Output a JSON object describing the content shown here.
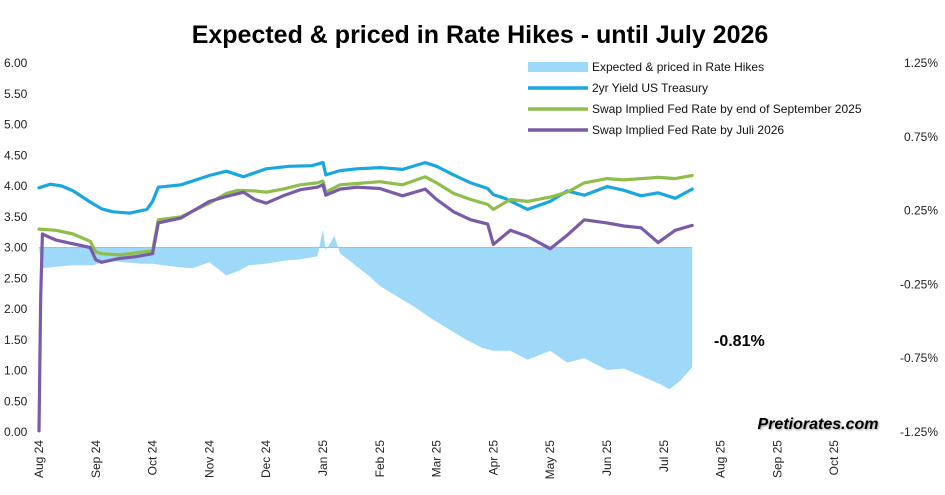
{
  "chart_data": {
    "type": "line",
    "title": "Expected & priced in Rate Hikes - until July 2026",
    "xlabel": "",
    "ylabel": "",
    "x_ticks": [
      "Aug 24",
      "Sep 24",
      "Oct 24",
      "Nov 24",
      "Dec 24",
      "Jan 25",
      "Feb 25",
      "Mar 25",
      "Apr 25",
      "May 25",
      "Jun 25",
      "Jul 25",
      "Aug 25",
      "Sep 25",
      "Oct 25"
    ],
    "y_left": {
      "ticks": [
        "6.00",
        "5.50",
        "5.00",
        "4.50",
        "4.00",
        "3.50",
        "3.00",
        "2.50",
        "2.00",
        "1.50",
        "1.00",
        "0.50",
        "0.00"
      ],
      "ylim": [
        0,
        6
      ]
    },
    "y_right": {
      "ticks": [
        "1.25%",
        "0.75%",
        "0.25%",
        "-0.25%",
        "-0.75%",
        "-1.25%"
      ],
      "ylim": [
        -1.25,
        1.25
      ]
    },
    "legend_position": "top-right",
    "grid": false,
    "series": [
      {
        "name": "Expected & priced in Rate Hikes",
        "kind": "area",
        "axis": "right",
        "color": "#9fd9fa",
        "x": [
          0.0,
          0.05,
          0.3,
          0.6,
          0.95,
          1.2,
          1.5,
          1.8,
          2.0,
          2.2,
          2.4,
          2.7,
          3.0,
          3.3,
          3.5,
          3.7,
          4.0,
          4.3,
          4.6,
          4.9,
          5.0,
          5.05,
          5.2,
          5.3,
          5.5,
          5.8,
          6.0,
          6.3,
          6.6,
          6.9,
          7.2,
          7.5,
          7.8,
          8.0,
          8.3,
          8.6,
          9.0,
          9.3,
          9.6,
          10.0,
          10.3,
          10.6,
          10.9,
          11.1,
          11.3,
          11.5
        ],
        "values": [
          0.0,
          -0.14,
          -0.13,
          -0.12,
          -0.12,
          -0.09,
          -0.1,
          -0.11,
          -0.11,
          -0.12,
          -0.13,
          -0.14,
          -0.1,
          -0.19,
          -0.16,
          -0.12,
          -0.11,
          -0.09,
          -0.08,
          -0.06,
          0.12,
          -0.02,
          0.08,
          -0.04,
          -0.1,
          -0.19,
          -0.26,
          -0.33,
          -0.4,
          -0.48,
          -0.55,
          -0.62,
          -0.68,
          -0.7,
          -0.7,
          -0.76,
          -0.7,
          -0.78,
          -0.75,
          -0.83,
          -0.82,
          -0.87,
          -0.92,
          -0.96,
          -0.9,
          -0.81
        ]
      },
      {
        "name": "2yr Yield US Treasury",
        "kind": "line",
        "axis": "left",
        "color": "#1aa7e0",
        "x": [
          0.0,
          0.2,
          0.4,
          0.6,
          0.9,
          1.1,
          1.3,
          1.6,
          1.9,
          2.0,
          2.1,
          2.5,
          3.0,
          3.3,
          3.6,
          4.0,
          4.4,
          4.8,
          5.0,
          5.05,
          5.3,
          5.6,
          6.0,
          6.4,
          6.8,
          7.0,
          7.3,
          7.6,
          7.9,
          8.0,
          8.2,
          8.6,
          9.0,
          9.3,
          9.6,
          10.0,
          10.3,
          10.6,
          10.9,
          11.2,
          11.5
        ],
        "values": [
          3.97,
          4.03,
          4.0,
          3.92,
          3.74,
          3.63,
          3.58,
          3.56,
          3.62,
          3.75,
          3.98,
          4.02,
          4.17,
          4.24,
          4.15,
          4.28,
          4.32,
          4.33,
          4.38,
          4.18,
          4.25,
          4.28,
          4.3,
          4.27,
          4.38,
          4.32,
          4.18,
          4.05,
          3.96,
          3.86,
          3.8,
          3.62,
          3.75,
          3.92,
          3.85,
          3.99,
          3.93,
          3.84,
          3.89,
          3.8,
          3.95
        ]
      },
      {
        "name": "Swap Implied Fed Rate by end of September 2025",
        "kind": "line",
        "axis": "left",
        "color": "#8fbe4c",
        "x": [
          0.0,
          0.3,
          0.6,
          0.9,
          1.0,
          1.1,
          1.4,
          1.7,
          2.0,
          2.1,
          2.5,
          3.0,
          3.3,
          3.5,
          3.8,
          4.0,
          4.3,
          4.6,
          4.9,
          5.0,
          5.05,
          5.3,
          5.6,
          6.0,
          6.4,
          6.8,
          7.0,
          7.3,
          7.6,
          7.9,
          8.0,
          8.3,
          8.6,
          9.0,
          9.3,
          9.6,
          10.0,
          10.3,
          10.6,
          10.9,
          11.2,
          11.5
        ],
        "values": [
          3.3,
          3.28,
          3.22,
          3.1,
          2.93,
          2.9,
          2.88,
          2.91,
          2.95,
          3.45,
          3.5,
          3.72,
          3.88,
          3.93,
          3.92,
          3.9,
          3.95,
          4.02,
          4.05,
          4.08,
          3.9,
          4.02,
          4.04,
          4.07,
          4.02,
          4.15,
          4.05,
          3.88,
          3.78,
          3.7,
          3.62,
          3.78,
          3.75,
          3.82,
          3.9,
          4.05,
          4.12,
          4.1,
          4.12,
          4.14,
          4.12,
          4.17
        ]
      },
      {
        "name": "Swap Implied Fed Rate by Juli 2026",
        "kind": "line",
        "axis": "left",
        "color": "#7a5baa",
        "x": [
          0.0,
          0.03,
          0.06,
          0.15,
          0.3,
          0.6,
          0.9,
          1.0,
          1.1,
          1.4,
          1.7,
          2.0,
          2.1,
          2.5,
          3.0,
          3.3,
          3.6,
          3.8,
          4.0,
          4.3,
          4.6,
          4.9,
          5.0,
          5.05,
          5.3,
          5.6,
          6.0,
          6.4,
          6.8,
          7.0,
          7.3,
          7.6,
          7.9,
          8.0,
          8.3,
          8.6,
          9.0,
          9.3,
          9.6,
          10.0,
          10.3,
          10.6,
          10.9,
          11.2,
          11.5
        ],
        "values": [
          0.02,
          2.2,
          3.22,
          3.18,
          3.12,
          3.06,
          3.0,
          2.8,
          2.76,
          2.82,
          2.85,
          2.9,
          3.4,
          3.48,
          3.75,
          3.83,
          3.9,
          3.78,
          3.72,
          3.84,
          3.94,
          3.98,
          4.02,
          3.85,
          3.95,
          3.98,
          3.96,
          3.84,
          3.95,
          3.78,
          3.58,
          3.45,
          3.38,
          3.05,
          3.28,
          3.18,
          2.98,
          3.2,
          3.45,
          3.4,
          3.35,
          3.32,
          3.08,
          3.28,
          3.36
        ]
      }
    ],
    "annotations": [
      {
        "text": "-0.81%",
        "near_x": 11.9,
        "near_y_right": -0.63
      }
    ],
    "watermark": "Pretiorates.com"
  }
}
